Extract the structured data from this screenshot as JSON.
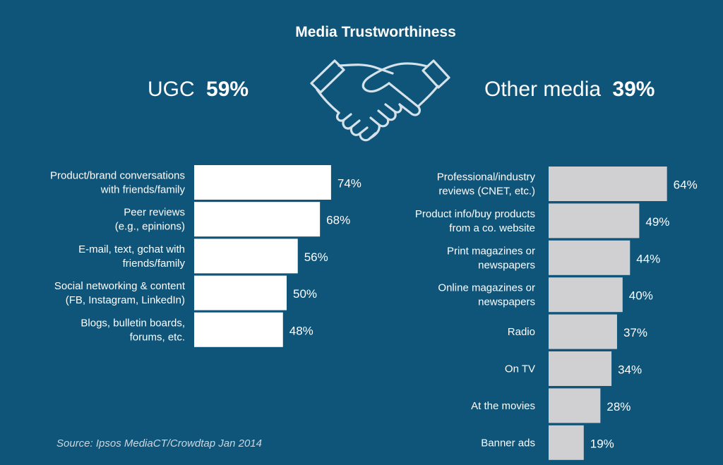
{
  "title": "Media Trustworthiness",
  "left_header": {
    "label": "UGC",
    "value": "59%"
  },
  "right_header": {
    "label": "Other media",
    "value": "39%"
  },
  "icon": "handshake-icon",
  "source": "Source: Ipsos MediaCT/Crowdtap Jan 2014",
  "colors": {
    "background": "#0f5479",
    "ugc_bar": "#ffffff",
    "other_bar": "#d0d0d3",
    "text": "#ffffff",
    "icon_stroke": "#d6e2ea"
  },
  "chart_data": [
    {
      "type": "bar",
      "orientation": "horizontal",
      "title": "UGC",
      "value_suffix": "%",
      "xlim": [
        0,
        100
      ],
      "categories": [
        [
          "Product/brand conversations",
          "with friends/family"
        ],
        [
          "Peer reviews",
          "(e.g., epinions)"
        ],
        [
          "E-mail, text, gchat with",
          "friends/family"
        ],
        [
          "Social networking & content",
          "(FB, Instagram, LinkedIn)"
        ],
        [
          "Blogs, bulletin boards,",
          "forums, etc."
        ]
      ],
      "values": [
        74,
        68,
        56,
        50,
        48
      ],
      "labels": [
        "74%",
        "68%",
        "56%",
        "50%",
        "48%"
      ]
    },
    {
      "type": "bar",
      "orientation": "horizontal",
      "title": "Other media",
      "value_suffix": "%",
      "xlim": [
        0,
        100
      ],
      "categories": [
        [
          "Professional/industry",
          "reviews (CNET, etc.)"
        ],
        [
          "Product info/buy products",
          "from a co. website"
        ],
        [
          "Print magazines or",
          "newspapers"
        ],
        [
          "Online magazines or",
          "newspapers"
        ],
        [
          "Radio"
        ],
        [
          "On TV"
        ],
        [
          "At the movies"
        ],
        [
          "Banner ads"
        ]
      ],
      "values": [
        64,
        49,
        44,
        40,
        37,
        34,
        28,
        19
      ],
      "labels": [
        "64%",
        "49%",
        "44%",
        "40%",
        "37%",
        "34%",
        "28%",
        "19%"
      ]
    }
  ]
}
